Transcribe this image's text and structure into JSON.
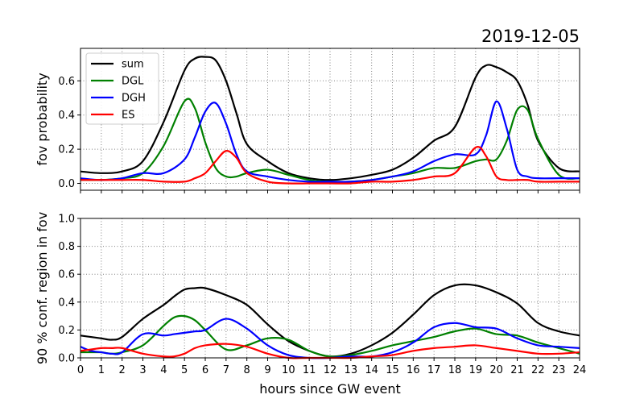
{
  "date_label": "2019-12-05",
  "colors": {
    "sum": "#000000",
    "DGL": "#008000",
    "DGH": "#0000ff",
    "ES": "#ff0000",
    "grid": "#808080"
  },
  "chart_data": [
    {
      "type": "line",
      "panel": "top",
      "ylabel": "fov probability",
      "xlabel": "",
      "xlim": [
        0,
        24
      ],
      "ylim": [
        -0.04,
        0.79
      ],
      "yticks": [
        0.0,
        0.2,
        0.4,
        0.6
      ],
      "grid": true,
      "legend": "top-left",
      "x": [
        0,
        1,
        2,
        3,
        4,
        5,
        5.5,
        6,
        6.5,
        7,
        7.5,
        8,
        9,
        10,
        11,
        12,
        13,
        14,
        15,
        16,
        17,
        18,
        19,
        19.5,
        20,
        20.5,
        21,
        21.5,
        22,
        23,
        24
      ],
      "series": [
        {
          "name": "sum",
          "values": [
            0.07,
            0.06,
            0.07,
            0.13,
            0.36,
            0.66,
            0.73,
            0.74,
            0.72,
            0.6,
            0.41,
            0.23,
            0.13,
            0.06,
            0.03,
            0.02,
            0.03,
            0.05,
            0.08,
            0.15,
            0.25,
            0.33,
            0.62,
            0.69,
            0.68,
            0.65,
            0.6,
            0.46,
            0.25,
            0.09,
            0.07
          ]
        },
        {
          "name": "DGL",
          "values": [
            0.02,
            0.02,
            0.03,
            0.06,
            0.22,
            0.48,
            0.44,
            0.24,
            0.09,
            0.04,
            0.04,
            0.06,
            0.08,
            0.05,
            0.02,
            0.01,
            0.01,
            0.02,
            0.04,
            0.06,
            0.09,
            0.09,
            0.13,
            0.14,
            0.14,
            0.25,
            0.43,
            0.43,
            0.26,
            0.05,
            0.03
          ]
        },
        {
          "name": "DGH",
          "values": [
            0.03,
            0.02,
            0.03,
            0.06,
            0.06,
            0.14,
            0.27,
            0.42,
            0.47,
            0.35,
            0.17,
            0.07,
            0.04,
            0.02,
            0.01,
            0.01,
            0.01,
            0.02,
            0.04,
            0.07,
            0.13,
            0.17,
            0.17,
            0.28,
            0.48,
            0.32,
            0.08,
            0.04,
            0.03,
            0.03,
            0.03
          ]
        },
        {
          "name": "ES",
          "values": [
            0.02,
            0.02,
            0.02,
            0.02,
            0.01,
            0.01,
            0.03,
            0.06,
            0.13,
            0.19,
            0.15,
            0.06,
            0.01,
            0.0,
            0.0,
            0.0,
            0.0,
            0.01,
            0.01,
            0.02,
            0.04,
            0.06,
            0.21,
            0.16,
            0.04,
            0.02,
            0.02,
            0.02,
            0.01,
            0.01,
            0.01
          ]
        }
      ]
    },
    {
      "type": "line",
      "panel": "bottom",
      "ylabel": "90 % conf. region in fov",
      "xlabel": "hours since GW event",
      "xlim": [
        0,
        24
      ],
      "ylim": [
        0.0,
        1.0
      ],
      "yticks": [
        0.0,
        0.2,
        0.4,
        0.6,
        0.8,
        1.0
      ],
      "xticks": [
        0,
        1,
        2,
        3,
        4,
        5,
        6,
        7,
        8,
        9,
        10,
        11,
        12,
        13,
        14,
        15,
        16,
        17,
        18,
        19,
        20,
        21,
        22,
        23,
        24
      ],
      "grid": true,
      "x": [
        0,
        0.5,
        1,
        1.5,
        2,
        3,
        4,
        4.5,
        5,
        5.5,
        6,
        7,
        8,
        9,
        10,
        11,
        12,
        13,
        14,
        15,
        16,
        17,
        18,
        19,
        20,
        21,
        22,
        23,
        24
      ],
      "series": [
        {
          "name": "sum",
          "values": [
            0.16,
            0.15,
            0.14,
            0.13,
            0.15,
            0.28,
            0.38,
            0.44,
            0.49,
            0.5,
            0.5,
            0.45,
            0.38,
            0.24,
            0.12,
            0.05,
            0.01,
            0.03,
            0.09,
            0.18,
            0.31,
            0.45,
            0.52,
            0.52,
            0.47,
            0.39,
            0.25,
            0.19,
            0.16
          ]
        },
        {
          "name": "DGL",
          "values": [
            0.04,
            0.04,
            0.04,
            0.03,
            0.04,
            0.09,
            0.23,
            0.29,
            0.3,
            0.27,
            0.2,
            0.06,
            0.09,
            0.14,
            0.13,
            0.05,
            0.01,
            0.02,
            0.05,
            0.09,
            0.12,
            0.15,
            0.19,
            0.21,
            0.17,
            0.16,
            0.11,
            0.07,
            0.03
          ]
        },
        {
          "name": "DGH",
          "values": [
            0.08,
            0.05,
            0.04,
            0.03,
            0.04,
            0.17,
            0.16,
            0.17,
            0.18,
            0.19,
            0.2,
            0.28,
            0.21,
            0.09,
            0.02,
            0.0,
            0.0,
            0.01,
            0.01,
            0.04,
            0.11,
            0.22,
            0.25,
            0.22,
            0.21,
            0.14,
            0.09,
            0.08,
            0.07
          ]
        },
        {
          "name": "ES",
          "values": [
            0.05,
            0.06,
            0.07,
            0.07,
            0.07,
            0.03,
            0.01,
            0.01,
            0.03,
            0.07,
            0.09,
            0.1,
            0.08,
            0.03,
            0.0,
            0.0,
            0.0,
            0.0,
            0.01,
            0.02,
            0.05,
            0.07,
            0.08,
            0.09,
            0.07,
            0.05,
            0.03,
            0.03,
            0.04
          ]
        }
      ]
    }
  ]
}
